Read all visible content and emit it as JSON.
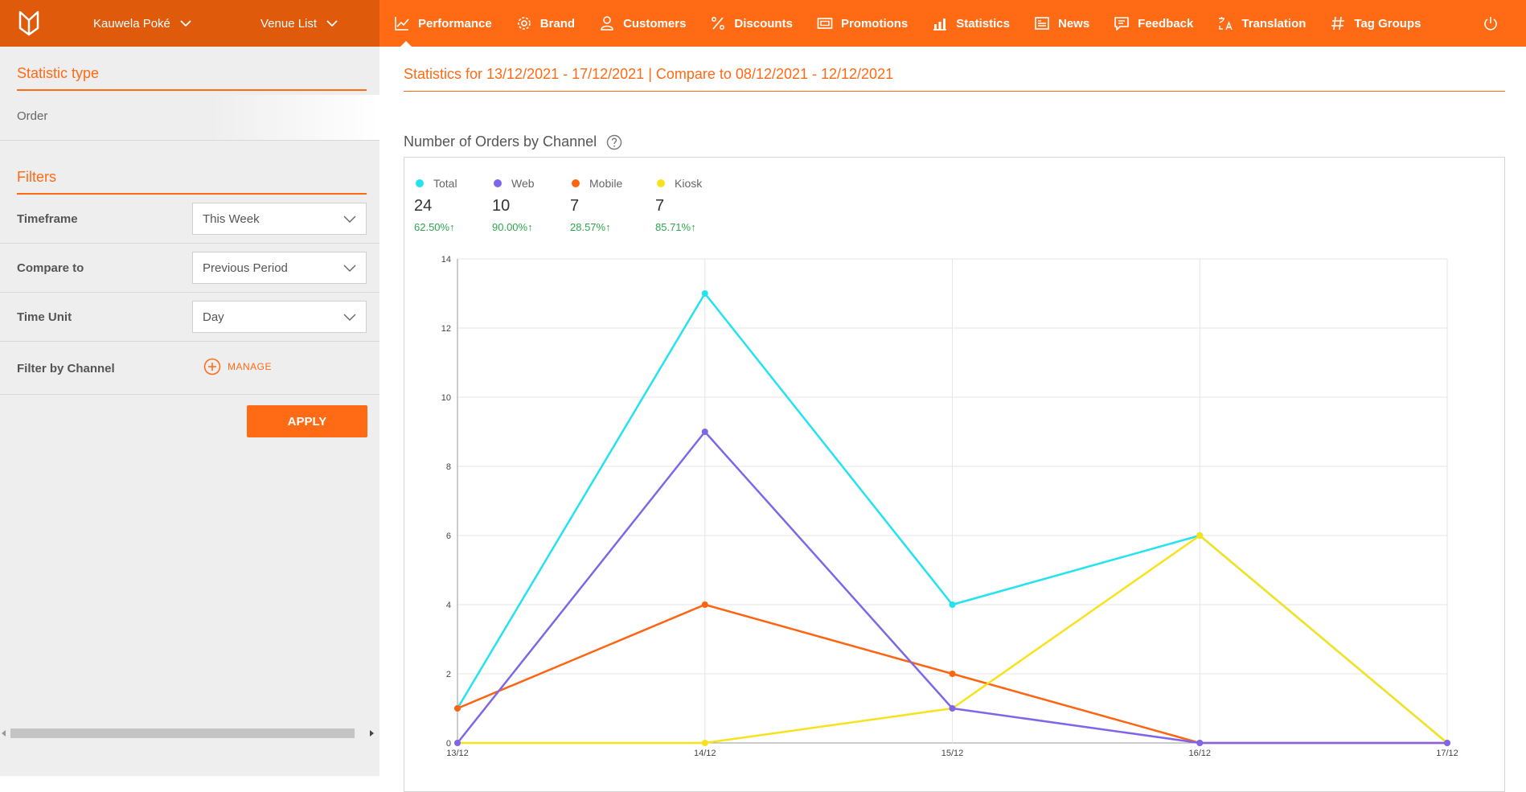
{
  "header": {
    "venue_group": "Kauwela Poké",
    "venue_list": "Venue List",
    "nav": [
      {
        "label": "Performance",
        "icon": "trend-icon",
        "active": true
      },
      {
        "label": "Brand",
        "icon": "gear-icon"
      },
      {
        "label": "Customers",
        "icon": "person-icon"
      },
      {
        "label": "Discounts",
        "icon": "percent-icon"
      },
      {
        "label": "Promotions",
        "icon": "ticket-icon"
      },
      {
        "label": "Statistics",
        "icon": "bar-chart-icon"
      },
      {
        "label": "News",
        "icon": "newspaper-icon"
      },
      {
        "label": "Feedback",
        "icon": "chat-icon"
      },
      {
        "label": "Translation",
        "icon": "translate-icon"
      },
      {
        "label": "Tag Groups",
        "icon": "hash-icon"
      }
    ]
  },
  "sidebar": {
    "statistic_type_title": "Statistic type",
    "statistic_type_value": "Order",
    "filters_title": "Filters",
    "filters": [
      {
        "label": "Timeframe",
        "value": "This Week"
      },
      {
        "label": "Compare to",
        "value": "Previous Period"
      },
      {
        "label": "Time Unit",
        "value": "Day"
      }
    ],
    "channel_filter_label": "Filter by Channel",
    "manage_label": "MANAGE",
    "apply_label": "APPLY"
  },
  "main": {
    "stats_title": "Statistics for 13/12/2021 - 17/12/2021 | Compare to 08/12/2021 - 12/12/2021",
    "chart_title": "Number of Orders by Channel",
    "legend": [
      {
        "name": "Total",
        "value": "24",
        "change": "62.50%↑",
        "color": "#22e3ef"
      },
      {
        "name": "Web",
        "value": "10",
        "change": "90.00%↑",
        "color": "#7f66e8"
      },
      {
        "name": "Mobile",
        "value": "7",
        "change": "28.57%↑",
        "color": "#ff6410"
      },
      {
        "name": "Kiosk",
        "value": "7",
        "change": "85.71%↑",
        "color": "#f7e21c"
      }
    ]
  },
  "chart_data": {
    "type": "line",
    "title": "Number of Orders by Channel",
    "categories": [
      "13/12",
      "14/12",
      "15/12",
      "16/12",
      "17/12"
    ],
    "ylim": [
      0,
      14
    ],
    "yticks": [
      0,
      2,
      4,
      6,
      8,
      10,
      12,
      14
    ],
    "grid": true,
    "series": [
      {
        "name": "Total",
        "color": "#22e3ef",
        "values": [
          1,
          13,
          4,
          6,
          0
        ]
      },
      {
        "name": "Mobile",
        "color": "#ff6410",
        "values": [
          1,
          4,
          2,
          0,
          0
        ]
      },
      {
        "name": "Kiosk",
        "color": "#f7e21c",
        "values": [
          0,
          0,
          1,
          6,
          0
        ]
      },
      {
        "name": "Web",
        "color": "#7f66e8",
        "values": [
          0,
          9,
          1,
          0,
          0
        ]
      }
    ]
  }
}
